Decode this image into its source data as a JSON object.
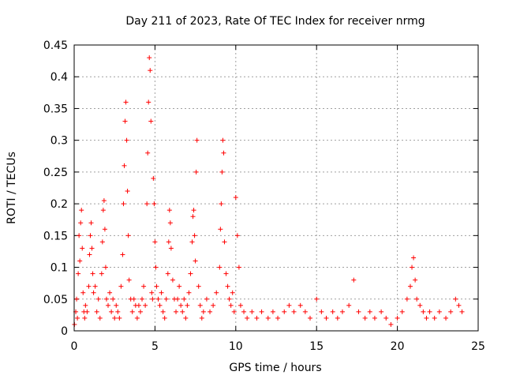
{
  "chart_data": {
    "type": "scatter",
    "title": "Day 211 of 2023, Rate Of TEC Index for receiver nrmg",
    "xlabel": "GPS time / hours",
    "ylabel": "ROTI / TECUs",
    "xlim": [
      0,
      25
    ],
    "ylim": [
      0,
      0.45
    ],
    "xticks": [
      "0",
      "5",
      "10",
      "15",
      "20",
      "25"
    ],
    "yticks": [
      "0",
      "0.05",
      "0.1",
      "0.15",
      "0.2",
      "0.25",
      "0.3",
      "0.35",
      "0.4",
      "0.45"
    ],
    "grid": true,
    "marker": "plus",
    "color": "#ff0000",
    "series": [
      {
        "points": [
          [
            0.02,
            0.01
          ],
          [
            0.1,
            0.03
          ],
          [
            0.15,
            0.05
          ],
          [
            0.2,
            0.02
          ],
          [
            0.25,
            0.09
          ],
          [
            0.3,
            0.15
          ],
          [
            0.35,
            0.11
          ],
          [
            0.4,
            0.17
          ],
          [
            0.45,
            0.19
          ],
          [
            0.5,
            0.13
          ],
          [
            0.55,
            0.06
          ],
          [
            0.6,
            0.03
          ],
          [
            0.65,
            0.02
          ],
          [
            0.7,
            0.04
          ],
          [
            0.8,
            0.03
          ],
          [
            0.9,
            0.07
          ],
          [
            0.95,
            0.12
          ],
          [
            1.0,
            0.15
          ],
          [
            1.05,
            0.17
          ],
          [
            1.1,
            0.13
          ],
          [
            1.15,
            0.09
          ],
          [
            1.2,
            0.06
          ],
          [
            1.3,
            0.07
          ],
          [
            1.4,
            0.03
          ],
          [
            1.5,
            0.05
          ],
          [
            1.6,
            0.02
          ],
          [
            1.7,
            0.09
          ],
          [
            1.75,
            0.14
          ],
          [
            1.8,
            0.19
          ],
          [
            1.85,
            0.205
          ],
          [
            1.9,
            0.16
          ],
          [
            1.95,
            0.1
          ],
          [
            2.0,
            0.05
          ],
          [
            2.1,
            0.04
          ],
          [
            2.2,
            0.06
          ],
          [
            2.3,
            0.03
          ],
          [
            2.4,
            0.05
          ],
          [
            2.5,
            0.02
          ],
          [
            2.6,
            0.04
          ],
          [
            2.7,
            0.03
          ],
          [
            2.8,
            0.02
          ],
          [
            2.9,
            0.07
          ],
          [
            3.0,
            0.12
          ],
          [
            3.05,
            0.2
          ],
          [
            3.1,
            0.26
          ],
          [
            3.15,
            0.33
          ],
          [
            3.2,
            0.36
          ],
          [
            3.25,
            0.3
          ],
          [
            3.3,
            0.22
          ],
          [
            3.35,
            0.15
          ],
          [
            3.4,
            0.08
          ],
          [
            3.5,
            0.05
          ],
          [
            3.6,
            0.03
          ],
          [
            3.7,
            0.05
          ],
          [
            3.8,
            0.04
          ],
          [
            3.9,
            0.02
          ],
          [
            4.0,
            0.04
          ],
          [
            4.1,
            0.03
          ],
          [
            4.2,
            0.05
          ],
          [
            4.3,
            0.07
          ],
          [
            4.4,
            0.04
          ],
          [
            4.5,
            0.2
          ],
          [
            4.55,
            0.28
          ],
          [
            4.6,
            0.36
          ],
          [
            4.65,
            0.43
          ],
          [
            4.7,
            0.41
          ],
          [
            4.75,
            0.33
          ],
          [
            4.8,
            0.06
          ],
          [
            4.85,
            0.05
          ],
          [
            4.9,
            0.24
          ],
          [
            4.95,
            0.2
          ],
          [
            5.0,
            0.14
          ],
          [
            5.05,
            0.1
          ],
          [
            5.1,
            0.07
          ],
          [
            5.2,
            0.05
          ],
          [
            5.3,
            0.04
          ],
          [
            5.4,
            0.06
          ],
          [
            5.5,
            0.03
          ],
          [
            5.6,
            0.02
          ],
          [
            5.7,
            0.05
          ],
          [
            5.8,
            0.09
          ],
          [
            5.85,
            0.14
          ],
          [
            5.9,
            0.19
          ],
          [
            5.95,
            0.17
          ],
          [
            6.0,
            0.13
          ],
          [
            6.1,
            0.08
          ],
          [
            6.2,
            0.05
          ],
          [
            6.3,
            0.03
          ],
          [
            6.4,
            0.05
          ],
          [
            6.5,
            0.07
          ],
          [
            6.6,
            0.04
          ],
          [
            6.7,
            0.03
          ],
          [
            6.8,
            0.05
          ],
          [
            6.9,
            0.02
          ],
          [
            7.0,
            0.04
          ],
          [
            7.1,
            0.06
          ],
          [
            7.2,
            0.09
          ],
          [
            7.3,
            0.14
          ],
          [
            7.35,
            0.18
          ],
          [
            7.4,
            0.19
          ],
          [
            7.45,
            0.15
          ],
          [
            7.5,
            0.11
          ],
          [
            7.55,
            0.25
          ],
          [
            7.6,
            0.3
          ],
          [
            7.7,
            0.07
          ],
          [
            7.8,
            0.04
          ],
          [
            7.9,
            0.02
          ],
          [
            8.0,
            0.03
          ],
          [
            8.2,
            0.05
          ],
          [
            8.4,
            0.03
          ],
          [
            8.6,
            0.04
          ],
          [
            8.8,
            0.06
          ],
          [
            9.0,
            0.1
          ],
          [
            9.05,
            0.16
          ],
          [
            9.1,
            0.2
          ],
          [
            9.15,
            0.25
          ],
          [
            9.2,
            0.3
          ],
          [
            9.25,
            0.28
          ],
          [
            9.3,
            0.14
          ],
          [
            9.4,
            0.09
          ],
          [
            9.5,
            0.07
          ],
          [
            9.6,
            0.05
          ],
          [
            9.7,
            0.04
          ],
          [
            9.8,
            0.06
          ],
          [
            9.9,
            0.03
          ],
          [
            10.0,
            0.21
          ],
          [
            10.1,
            0.15
          ],
          [
            10.2,
            0.1
          ],
          [
            10.3,
            0.04
          ],
          [
            10.5,
            0.03
          ],
          [
            10.7,
            0.02
          ],
          [
            11.0,
            0.03
          ],
          [
            11.3,
            0.02
          ],
          [
            11.6,
            0.03
          ],
          [
            12.0,
            0.02
          ],
          [
            12.3,
            0.03
          ],
          [
            12.6,
            0.02
          ],
          [
            13.0,
            0.03
          ],
          [
            13.3,
            0.04
          ],
          [
            13.6,
            0.03
          ],
          [
            14.0,
            0.04
          ],
          [
            14.3,
            0.03
          ],
          [
            14.6,
            0.02
          ],
          [
            15.0,
            0.05
          ],
          [
            15.3,
            0.03
          ],
          [
            15.6,
            0.02
          ],
          [
            16.0,
            0.03
          ],
          [
            16.3,
            0.02
          ],
          [
            16.6,
            0.03
          ],
          [
            17.0,
            0.04
          ],
          [
            17.3,
            0.08
          ],
          [
            17.6,
            0.03
          ],
          [
            18.0,
            0.02
          ],
          [
            18.3,
            0.03
          ],
          [
            18.6,
            0.02
          ],
          [
            19.0,
            0.03
          ],
          [
            19.3,
            0.02
          ],
          [
            19.6,
            0.01
          ],
          [
            20.0,
            0.02
          ],
          [
            20.3,
            0.03
          ],
          [
            20.6,
            0.05
          ],
          [
            20.8,
            0.07
          ],
          [
            20.9,
            0.1
          ],
          [
            21.0,
            0.115
          ],
          [
            21.1,
            0.08
          ],
          [
            21.2,
            0.05
          ],
          [
            21.4,
            0.04
          ],
          [
            21.6,
            0.03
          ],
          [
            21.8,
            0.02
          ],
          [
            22.0,
            0.03
          ],
          [
            22.3,
            0.02
          ],
          [
            22.6,
            0.03
          ],
          [
            23.0,
            0.02
          ],
          [
            23.3,
            0.03
          ],
          [
            23.6,
            0.05
          ],
          [
            23.8,
            0.04
          ],
          [
            24.0,
            0.03
          ]
        ]
      }
    ]
  }
}
